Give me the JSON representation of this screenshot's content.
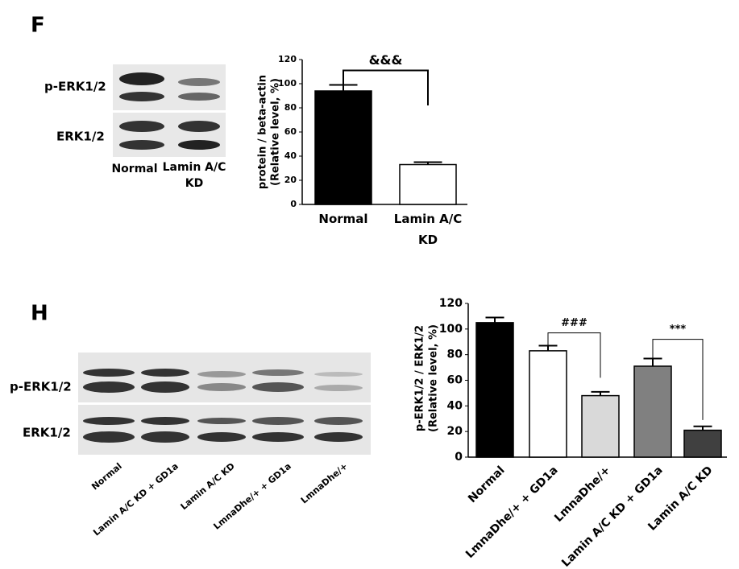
{
  "panels": [
    {
      "letter": "F",
      "blot_rows": [
        "p-ERK1/2",
        "ERK1/2"
      ],
      "lanes": [
        "Normal",
        "Lamin A/C KD"
      ]
    },
    {
      "letter": "H",
      "blot_rows": [
        "p-ERK1/2",
        "ERK1/2"
      ],
      "lanes": [
        "Normal",
        "Lamin A/C KD + GD1a",
        "Lamin A/C KD",
        "LmnaDhe/+ + GD1a",
        "LmnaDhe/+"
      ]
    }
  ],
  "chart_data": [
    {
      "type": "bar",
      "y_label": [
        "protein / beta-actin",
        "(Relative level, %)"
      ],
      "categories": [
        "Normal",
        "Lamin A/C KD"
      ],
      "values": [
        94,
        33
      ],
      "errors": [
        5,
        2
      ],
      "colors": [
        "#000000",
        "#ffffff"
      ],
      "ylim": [
        0,
        120
      ],
      "yticks": [
        0,
        20,
        40,
        60,
        80,
        100,
        120
      ],
      "annotations": [
        "&&&"
      ]
    },
    {
      "type": "bar",
      "y_label": [
        "p-ERK1/2 / ERK1/2",
        "(Relative level, %)"
      ],
      "categories": [
        "Normal",
        "LmnaDhe/+ + GD1a",
        "LmnaDhe/+",
        "Lamin A/C KD + GD1a",
        "Lamin A/C KD"
      ],
      "values": [
        105,
        83,
        48,
        71,
        21
      ],
      "errors": [
        4,
        4,
        3,
        6,
        3
      ],
      "colors": [
        "#000000",
        "#ffffff",
        "#d9d9d9",
        "#808080",
        "#404040"
      ],
      "ylim": [
        0,
        120
      ],
      "yticks": [
        0,
        20,
        40,
        60,
        80,
        100,
        120
      ],
      "annotations": [
        "###",
        "***"
      ]
    }
  ]
}
